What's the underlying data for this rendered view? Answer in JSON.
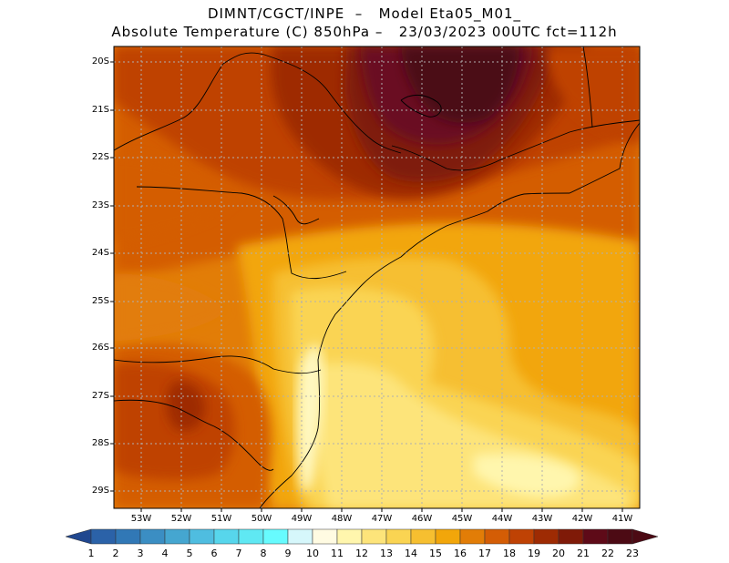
{
  "header": {
    "line1": "DIMNT/CGCT/INPE  –   Model Eta05_M01_",
    "line2": "Absolute Temperature (C) 850hPa –   23/03/2023 00UTC fct=112h"
  },
  "map": {
    "variable": "Absolute Temperature (C) 850hPa",
    "lat_labels": [
      "20S",
      "21S",
      "22S",
      "23S",
      "24S",
      "25S",
      "26S",
      "27S",
      "28S",
      "29S"
    ],
    "lon_labels": [
      "53W",
      "52W",
      "51W",
      "50W",
      "49W",
      "48W",
      "47W",
      "46W",
      "45W",
      "44W",
      "43W",
      "42W",
      "41W"
    ],
    "gridlines": "dotted"
  },
  "colorbar": {
    "labels": [
      "1",
      "2",
      "3",
      "4",
      "5",
      "6",
      "7",
      "8",
      "9",
      "10",
      "11",
      "12",
      "13",
      "14",
      "15",
      "16",
      "17",
      "18",
      "19",
      "20",
      "21",
      "22",
      "23"
    ],
    "colors": [
      "#20478f",
      "#2b62a8",
      "#3178b6",
      "#3b8ec3",
      "#45a6d0",
      "#4fbde0",
      "#57d6ec",
      "#5fe8f3",
      "#67fbfe",
      "#d6f7fb",
      "#fffbe2",
      "#fff6ad",
      "#fde47a",
      "#fad452",
      "#f6bf30",
      "#f2a60a",
      "#e27d07",
      "#d45d05",
      "#bf4204",
      "#9e2b03",
      "#7f1a08",
      "#5e0a18",
      "#4c0a14"
    ]
  }
}
